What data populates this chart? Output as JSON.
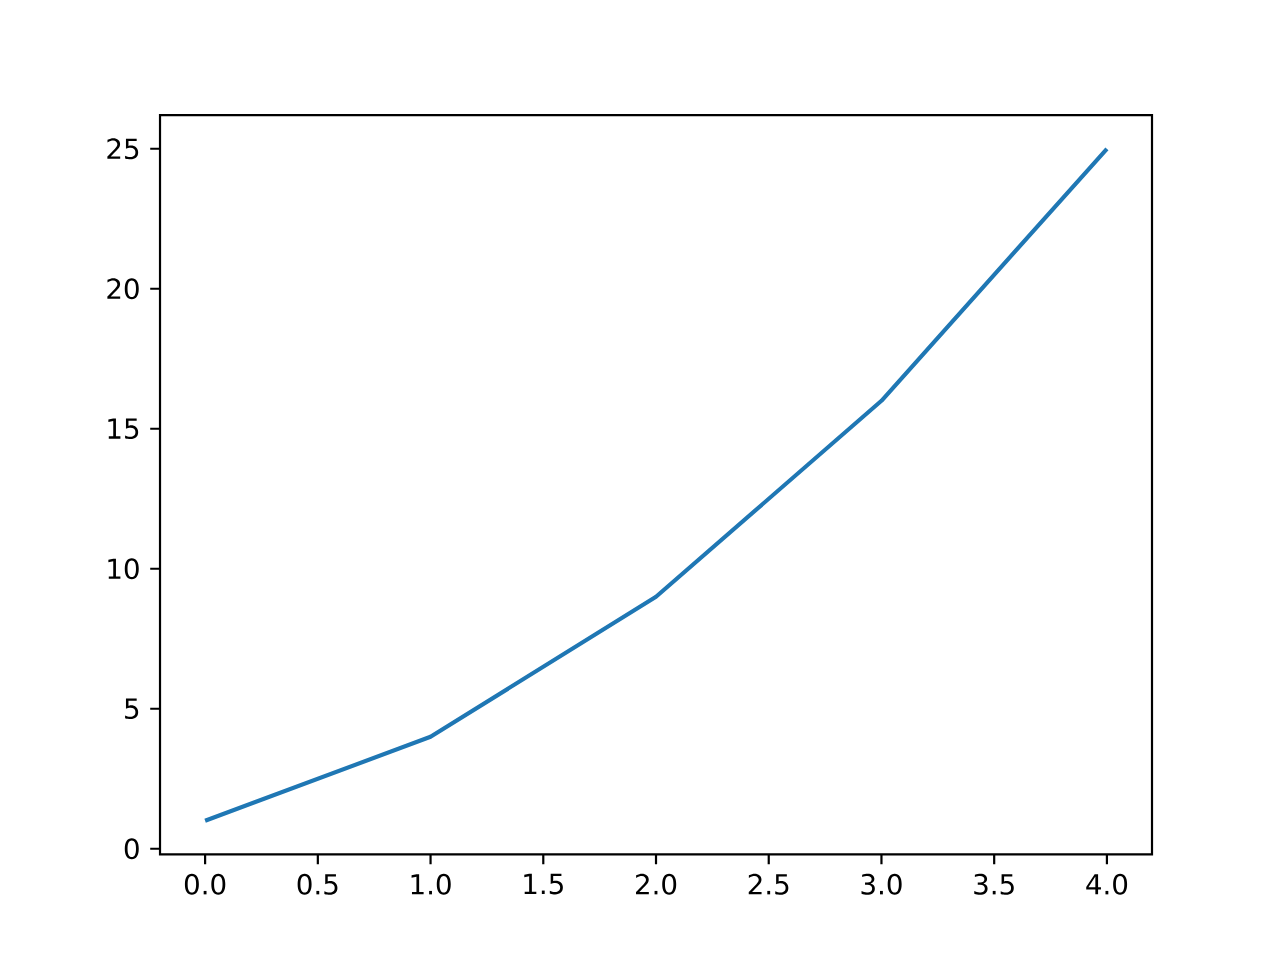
{
  "chart_data": {
    "type": "line",
    "x": [
      0,
      1,
      2,
      3,
      4
    ],
    "series": [
      {
        "color": "#1f77b4",
        "values": [
          1,
          4,
          9,
          16,
          25
        ]
      }
    ],
    "xlim": [
      -0.2,
      4.2
    ],
    "ylim": [
      -0.2,
      26.2
    ],
    "xticks": [
      {
        "value": 0,
        "label": "0.0"
      },
      {
        "value": 0.5,
        "label": "0.5"
      },
      {
        "value": 1,
        "label": "1.0"
      },
      {
        "value": 1.5,
        "label": "1.5"
      },
      {
        "value": 2,
        "label": "2.0"
      },
      {
        "value": 2.5,
        "label": "2.5"
      },
      {
        "value": 3,
        "label": "3.0"
      },
      {
        "value": 3.5,
        "label": "3.5"
      },
      {
        "value": 4,
        "label": "4.0"
      }
    ],
    "yticks": [
      0,
      5,
      10,
      15,
      20,
      25
    ]
  }
}
